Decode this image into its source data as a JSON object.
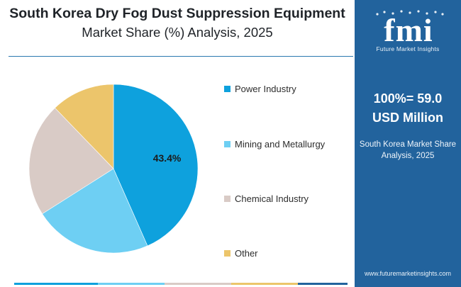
{
  "header": {
    "title_line1": "South Korea Dry Fog Dust Suppression Equipment",
    "title_line2": "Market Share (%) Analysis, 2025"
  },
  "sidebar": {
    "logo_text": "fmi",
    "logo_subtitle": "Future Market Insights",
    "total_line1": "100%= 59.0",
    "total_line2": "USD Million",
    "description_line1": "South Korea Market Share",
    "description_line2": "Analysis, 2025",
    "url": "www.futuremarketinsights.com",
    "background_color": "#22639d"
  },
  "chart_data": {
    "type": "pie",
    "title": "South Korea Dry Fog Dust Suppression Equipment Market Share (%) Analysis, 2025",
    "unit": "%",
    "total": "100%= 59.0 USD Million",
    "start_angle_deg": 0,
    "direction": "clockwise",
    "legend_position": "right",
    "slices": [
      {
        "label": "Power Industry",
        "value": 43.4,
        "color": "#0ea1dd",
        "show_label": true,
        "display_label": "43.4%"
      },
      {
        "label": "Mining and Metallurgy",
        "value": 22.6,
        "color": "#6ecff3",
        "show_label": false,
        "display_label": ""
      },
      {
        "label": "Chemical Industry",
        "value": 21.8,
        "color": "#d9cbc6",
        "show_label": false,
        "display_label": ""
      },
      {
        "label": "Other",
        "value": 12.2,
        "color": "#ecc56b",
        "show_label": false,
        "display_label": ""
      }
    ]
  },
  "decor": {
    "bottom_bar_colors": [
      "#0ea1dd",
      "#6ecff3",
      "#d9cbc6",
      "#ecc56b",
      "#22639d"
    ]
  }
}
